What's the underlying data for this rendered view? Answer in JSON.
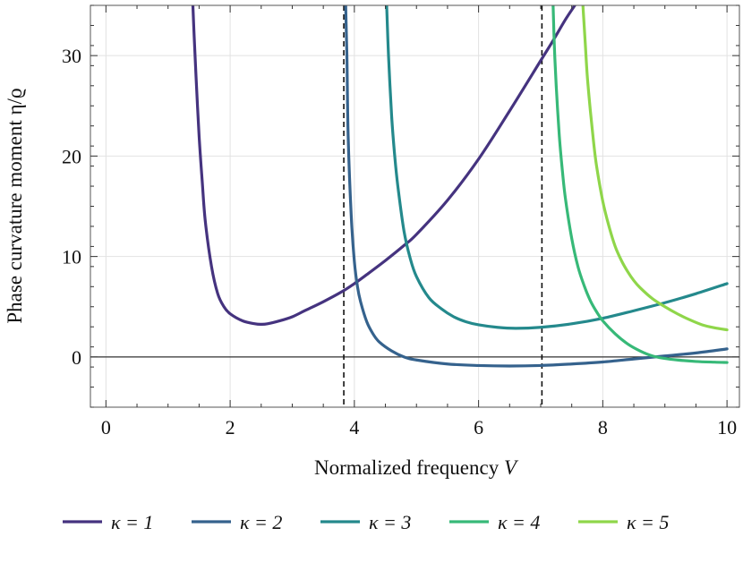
{
  "chart_data": {
    "type": "line",
    "title": "",
    "xlabel": "Normalized frequency",
    "xlabel_var": "V",
    "ylabel": "Phase curvature moment η/ϱ",
    "xlim": [
      -0.25,
      10.2
    ],
    "ylim": [
      -5,
      35
    ],
    "xticks": [
      0,
      2,
      4,
      6,
      8,
      10
    ],
    "yticks": [
      0,
      10,
      20,
      30
    ],
    "grid": true,
    "legend_position": "bottom",
    "reference_lines": {
      "horizontal_y": 0,
      "vertical_dashed_x": [
        3.83,
        7.02
      ]
    },
    "series": [
      {
        "name": "κ = 1",
        "color": "#45337f",
        "x": [
          1.4,
          1.42,
          1.45,
          1.5,
          1.55,
          1.6,
          1.7,
          1.8,
          1.9,
          2.0,
          2.2,
          2.4,
          2.5,
          2.6,
          2.8,
          3.0,
          3.2,
          3.5,
          3.8,
          4.0,
          4.2,
          4.5,
          4.8,
          5.0,
          5.5,
          6.0,
          6.5,
          7.0,
          7.2,
          7.4,
          7.55
        ],
        "y": [
          35.0,
          32.0,
          28.0,
          22.0,
          17.5,
          13.5,
          9.0,
          6.3,
          5.0,
          4.3,
          3.6,
          3.3,
          3.25,
          3.3,
          3.6,
          4.0,
          4.6,
          5.5,
          6.5,
          7.3,
          8.2,
          9.6,
          11.1,
          12.2,
          15.6,
          19.7,
          24.5,
          29.5,
          31.5,
          33.6,
          35.0
        ]
      },
      {
        "name": "κ = 2",
        "color": "#35628d",
        "x": [
          3.86,
          3.88,
          3.9,
          3.95,
          4.0,
          4.05,
          4.1,
          4.2,
          4.3,
          4.4,
          4.6,
          4.8,
          5.0,
          5.5,
          6.0,
          6.5,
          7.0,
          7.5,
          8.0,
          8.5,
          9.0,
          9.5,
          10.0
        ],
        "y": [
          35.0,
          30.0,
          22.0,
          14.0,
          9.5,
          7.0,
          5.5,
          3.5,
          2.3,
          1.5,
          0.6,
          0.0,
          -0.3,
          -0.7,
          -0.85,
          -0.9,
          -0.85,
          -0.7,
          -0.5,
          -0.2,
          0.1,
          0.4,
          0.8
        ]
      },
      {
        "name": "κ = 3",
        "color": "#24898c",
        "x": [
          4.52,
          4.55,
          4.6,
          4.65,
          4.7,
          4.8,
          4.9,
          5.0,
          5.2,
          5.4,
          5.6,
          5.8,
          6.0,
          6.3,
          6.6,
          7.0,
          7.5,
          8.0,
          8.5,
          9.0,
          9.5,
          10.0
        ],
        "y": [
          35.0,
          30.0,
          24.0,
          20.0,
          17.0,
          12.5,
          9.8,
          8.0,
          5.9,
          4.8,
          4.0,
          3.5,
          3.2,
          2.95,
          2.85,
          2.95,
          3.3,
          3.85,
          4.6,
          5.4,
          6.3,
          7.3
        ]
      },
      {
        "name": "κ = 4",
        "color": "#37b978",
        "x": [
          7.2,
          7.22,
          7.25,
          7.3,
          7.35,
          7.4,
          7.5,
          7.6,
          7.7,
          7.8,
          7.9,
          8.0,
          8.2,
          8.4,
          8.6,
          8.8,
          9.0,
          9.2,
          9.5,
          9.8,
          10.0
        ],
        "y": [
          35.0,
          31.0,
          27.0,
          22.0,
          18.5,
          15.7,
          11.8,
          9.0,
          7.1,
          5.6,
          4.5,
          3.6,
          2.3,
          1.3,
          0.6,
          0.1,
          -0.15,
          -0.3,
          -0.45,
          -0.52,
          -0.55
        ]
      },
      {
        "name": "κ = 5",
        "color": "#8fd64a",
        "x": [
          7.68,
          7.7,
          7.72,
          7.75,
          7.8,
          7.85,
          7.9,
          8.0,
          8.1,
          8.2,
          8.3,
          8.4,
          8.5,
          8.6,
          8.8,
          9.0,
          9.2,
          9.4,
          9.6,
          9.8,
          10.0
        ],
        "y": [
          35.0,
          33.0,
          31.0,
          28.0,
          24.5,
          21.5,
          19.0,
          15.5,
          13.0,
          11.0,
          9.6,
          8.5,
          7.6,
          6.9,
          5.8,
          5.0,
          4.3,
          3.7,
          3.2,
          2.9,
          2.7
        ]
      }
    ]
  }
}
